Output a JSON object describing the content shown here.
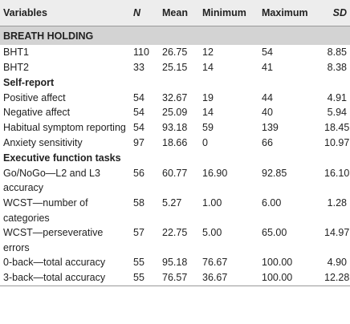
{
  "table": {
    "header": [
      "Variables",
      "N",
      "Mean",
      "Minimum",
      "Maximum",
      "SD"
    ],
    "rows": [
      {
        "section": "BREATH HOLDING"
      },
      {
        "cells": [
          "BHT1",
          "110",
          "26.75",
          "12",
          "54",
          "8.85"
        ]
      },
      {
        "cells": [
          "BHT2",
          "33",
          "25.15",
          "14",
          "41",
          "8.38"
        ]
      },
      {
        "section": "Self-report"
      },
      {
        "cells": [
          "Positive affect",
          "54",
          "32.67",
          "19",
          "44",
          "4.91"
        ]
      },
      {
        "cells": [
          "Negative affect",
          "54",
          "25.09",
          "14",
          "40",
          "5.94"
        ]
      },
      {
        "cells": [
          "Habitual symptom reporting",
          "54",
          "93.18",
          "59",
          "139",
          "18.45"
        ]
      },
      {
        "cells": [
          "Anxiety sensitivity",
          "97",
          "18.66",
          "0",
          "66",
          "10.97"
        ]
      },
      {
        "section": "Executive function tasks"
      },
      {
        "cells": [
          "Go/NoGo—L2 and L3 accuracy",
          "56",
          "60.77",
          "16.90",
          "92.85",
          "16.10"
        ]
      },
      {
        "cells": [
          "WCST—number of categories",
          "58",
          "5.27",
          "1.00",
          "6.00",
          "1.28"
        ]
      },
      {
        "cells": [
          "WCST—perseverative errors",
          "57",
          "22.75",
          "5.00",
          "65.00",
          "14.97"
        ]
      },
      {
        "cells": [
          "0-back—total accuracy",
          "55",
          "95.18",
          "76.67",
          "100.00",
          "4.90"
        ]
      },
      {
        "cells": [
          "3-back—total accuracy",
          "55",
          "76.57",
          "36.67",
          "100.00",
          "12.28"
        ]
      }
    ]
  }
}
